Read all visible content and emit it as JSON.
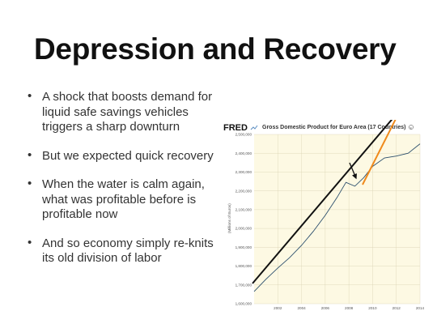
{
  "slide": {
    "title": "Depression and Recovery",
    "bullets": [
      "A shock that boosts demand for liquid safe savings vehicles triggers a sharp downturn",
      "But we expected quick recovery",
      "When the water is calm again, what was profitable before is profitable now",
      "And so economy simply re-knits its old division of labor"
    ]
  },
  "chart_data": {
    "type": "line",
    "title": "Gross Domestic Product for Euro Area (17 Countries)",
    "logo": "FRED",
    "ylabel": "(Millions of Euros)",
    "x": [
      2000,
      2001,
      2002,
      2003,
      2004,
      2005,
      2006,
      2007,
      2007.75,
      2008.5,
      2009.25,
      2010,
      2011,
      2012,
      2013,
      2014
    ],
    "series": [
      {
        "values": [
          1665000,
          1730000,
          1790000,
          1845000,
          1910000,
          1985000,
          2070000,
          2165000,
          2245000,
          2225000,
          2270000,
          2330000,
          2375000,
          2385000,
          2400000,
          2450000
        ]
      }
    ],
    "xticks": [
      "2002",
      "2004",
      "2006",
      "2008",
      "2010",
      "2012",
      "2014"
    ],
    "yticks": [
      "1,600,000",
      "1,700,000",
      "1,800,000",
      "1,900,000",
      "2,000,000",
      "2,100,000",
      "2,200,000",
      "2,300,000",
      "2,400,000",
      "2,500,000"
    ],
    "ylim": [
      1600000,
      2500000
    ],
    "xlim": [
      2000,
      2014
    ],
    "grid": true,
    "colors": {
      "plot_bg": "#fdf9e3",
      "line": "#2c4f6d",
      "trend_arrow": "#111111",
      "recovery_arrow": "#f08a1c",
      "grid": "#d9d2b2"
    }
  }
}
